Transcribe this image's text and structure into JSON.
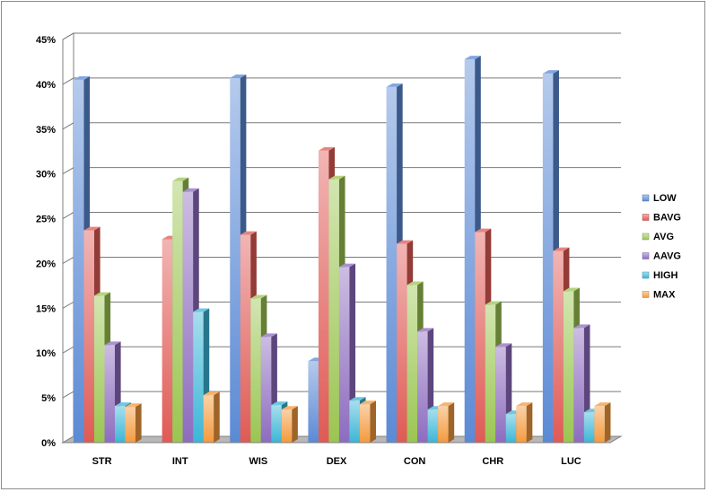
{
  "chart_data": {
    "type": "bar",
    "categories": [
      "STR",
      "INT",
      "WIS",
      "DEX",
      "CON",
      "CHR",
      "LUC"
    ],
    "series": [
      {
        "name": "LOW",
        "color": "#5b8ad5",
        "values": [
          40.5,
          0,
          40.7,
          9.1,
          39.7,
          42.8,
          41.2
        ]
      },
      {
        "name": "BAVG",
        "color": "#e05a55",
        "values": [
          23.7,
          22.7,
          23.2,
          32.6,
          22.2,
          23.5,
          21.4
        ]
      },
      {
        "name": "AVG",
        "color": "#9bc552",
        "values": [
          16.4,
          29.2,
          16.1,
          29.4,
          17.6,
          15.4,
          16.9
        ]
      },
      {
        "name": "AAVG",
        "color": "#8d6cbf",
        "values": [
          10.9,
          28.0,
          11.8,
          19.6,
          12.4,
          10.7,
          12.8
        ]
      },
      {
        "name": "HIGH",
        "color": "#3cb6d6",
        "values": [
          4.1,
          14.6,
          4.2,
          4.7,
          3.7,
          3.2,
          3.4
        ]
      },
      {
        "name": "MAX",
        "color": "#f49a3e",
        "values": [
          4.0,
          5.3,
          3.7,
          4.3,
          4.1,
          4.1,
          4.1
        ]
      }
    ],
    "y_ticks": [
      "0%",
      "5%",
      "10%",
      "15%",
      "20%",
      "25%",
      "30%",
      "35%",
      "40%",
      "45%"
    ],
    "ylim": [
      0,
      45
    ],
    "y_unit": "%",
    "grid": true,
    "legend_position": "right",
    "title": "",
    "xlabel": "",
    "ylabel": ""
  }
}
